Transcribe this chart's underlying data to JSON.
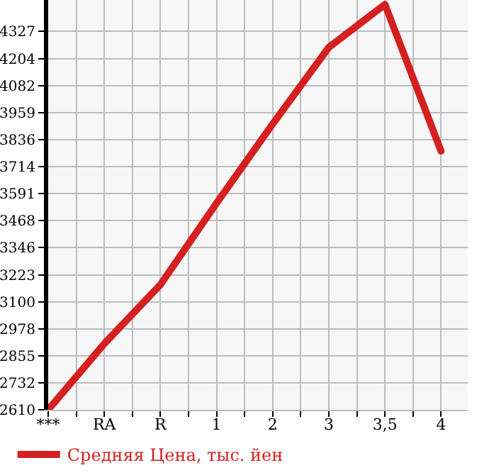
{
  "chart_data": {
    "type": "line",
    "categories": [
      "***",
      "RA",
      "R",
      "1",
      "2",
      "3",
      "3,5",
      "4"
    ],
    "series": [
      {
        "name": "Средняя Цена, тыс. йен",
        "color": "#d42020",
        "values": [
          2610,
          2910,
          3178,
          3548,
          3907,
          4255,
          4450,
          3784
        ]
      }
    ],
    "ylim": [
      2610,
      4470
    ],
    "yticks": [
      2610,
      2732,
      2855,
      2978,
      3100,
      3223,
      3346,
      3468,
      3591,
      3714,
      3836,
      3959,
      4082,
      4204,
      4327
    ],
    "grid": true,
    "legend": "bottom",
    "marker": "none",
    "line_style": "solid"
  }
}
